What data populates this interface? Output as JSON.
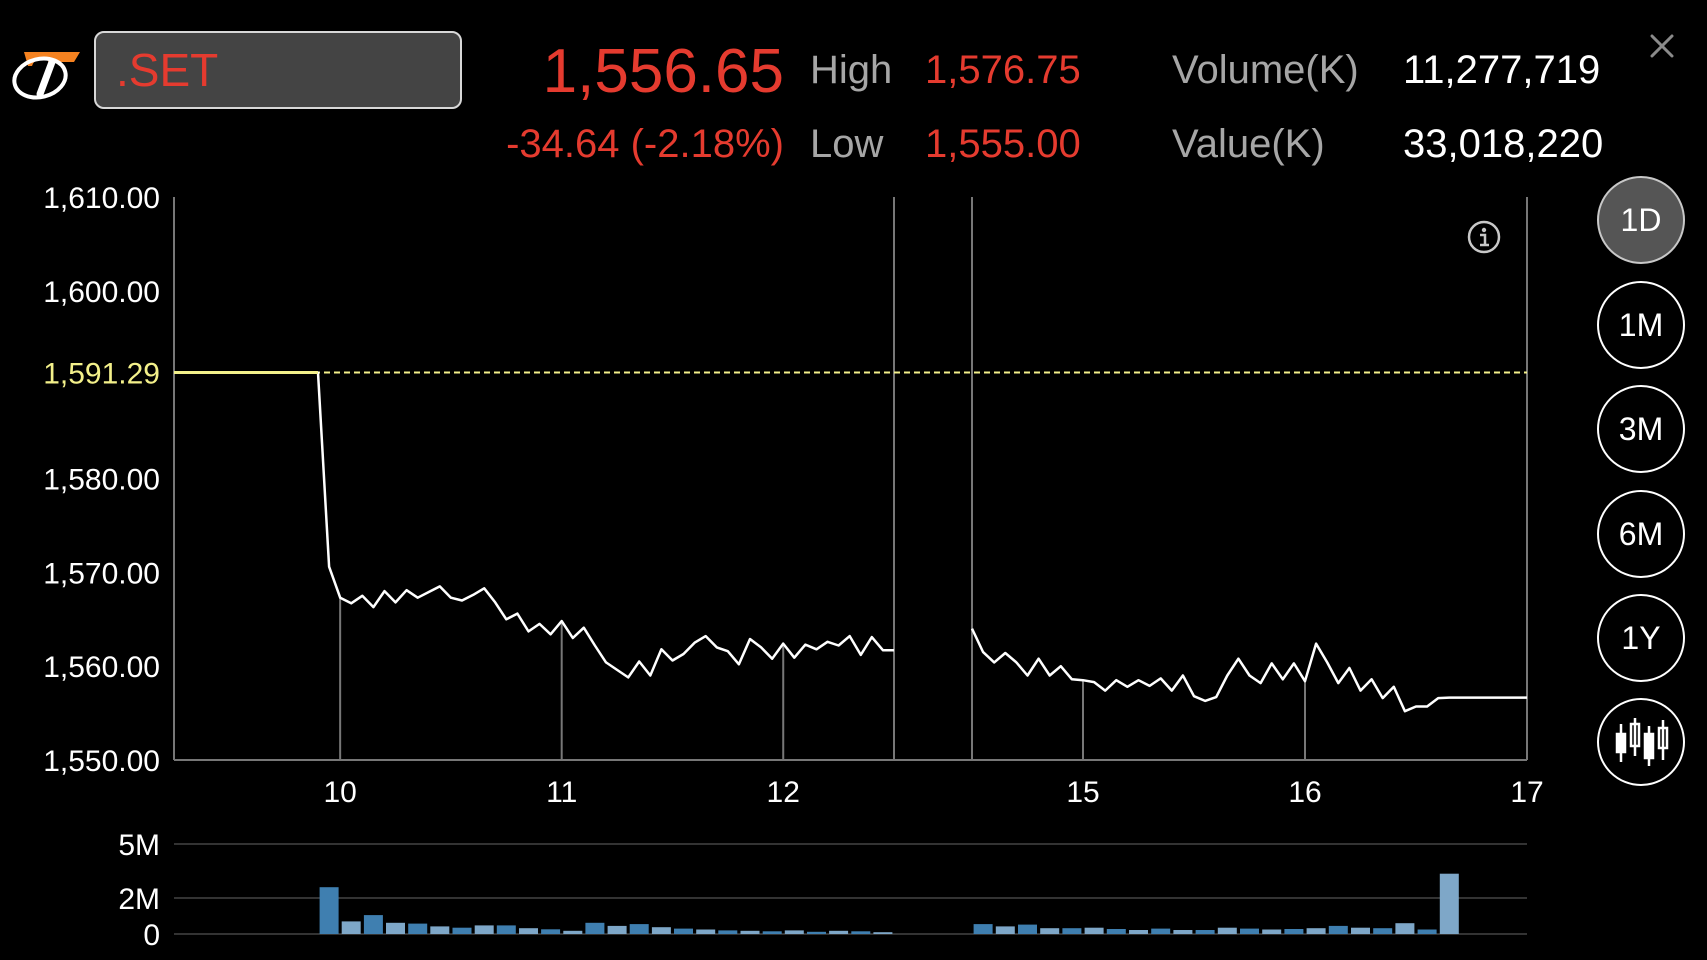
{
  "header": {
    "symbol": ".SET",
    "last_price": "1,556.65",
    "change": "-34.64 (-2.18%)",
    "high_label": "High",
    "high_value": "1,576.75",
    "low_label": "Low",
    "low_value": "1,555.00",
    "volume_label": "Volume(K)",
    "volume_value": "11,277,719",
    "value_label": "Value(K)",
    "value_value": "33,018,220"
  },
  "icons": {
    "logo": "brand-logo-icon",
    "close": "close-icon",
    "info": "info-icon",
    "candlestick": "candlestick-icon"
  },
  "periods": [
    {
      "label": "1D",
      "active": true
    },
    {
      "label": "1M",
      "active": false
    },
    {
      "label": "3M",
      "active": false
    },
    {
      "label": "6M",
      "active": false
    },
    {
      "label": "1Y",
      "active": false
    }
  ],
  "colors": {
    "up_down_red": "#e53b2f",
    "prev_close_yellow": "#f3f08a",
    "line": "#ffffff",
    "volume_blue": "#3f7fb0",
    "volume_light": "#7ea7c8"
  },
  "chart_data": [
    {
      "type": "line",
      "title": "",
      "ylim": [
        1550,
        1610
      ],
      "y_ticks": [
        "1,610.00",
        "1,600.00",
        "1,580.00",
        "1,570.00",
        "1,560.00",
        "1,550.00"
      ],
      "y_tick_values": [
        1610,
        1600,
        1580,
        1570,
        1560,
        1550
      ],
      "prev_close": {
        "label": "1,591.29",
        "value": 1591.29
      },
      "x_ticks": [
        "10",
        "11",
        "12",
        "15",
        "16",
        "17"
      ],
      "x_tick_values": [
        10,
        11,
        12,
        15,
        16,
        17
      ],
      "x_range": [
        9.25,
        17
      ],
      "session_break": [
        12.5,
        14.5
      ],
      "series": [
        {
          "x": [
            9.25,
            9.9,
            9.95,
            10.0,
            10.05,
            10.1,
            10.15,
            10.2,
            10.25,
            10.3,
            10.35,
            10.4,
            10.45,
            10.5,
            10.55,
            10.6,
            10.65,
            10.7,
            10.75,
            10.8,
            10.85,
            10.9,
            10.95,
            11.0,
            11.05,
            11.1,
            11.15,
            11.2,
            11.25,
            11.3,
            11.35,
            11.4,
            11.45,
            11.5,
            11.55,
            11.6,
            11.65,
            11.7,
            11.75,
            11.8,
            11.85,
            11.9,
            11.95,
            12.0,
            12.05,
            12.1,
            12.15,
            12.2,
            12.25,
            12.3,
            12.35,
            12.4,
            12.45,
            12.5
          ],
          "y": [
            1591.29,
            1591.29,
            1570.6,
            1567.3,
            1566.7,
            1567.5,
            1566.3,
            1568.0,
            1566.8,
            1568.1,
            1567.3,
            1567.9,
            1568.5,
            1567.3,
            1567.0,
            1567.6,
            1568.3,
            1566.8,
            1565.0,
            1565.6,
            1563.7,
            1564.5,
            1563.4,
            1564.8,
            1563.0,
            1564.1,
            1562.2,
            1560.4,
            1559.6,
            1558.8,
            1560.5,
            1559.0,
            1561.8,
            1560.6,
            1561.3,
            1562.5,
            1563.2,
            1562.0,
            1561.6,
            1560.2,
            1562.9,
            1562.0,
            1560.8,
            1562.4,
            1560.9,
            1562.3,
            1561.8,
            1562.6,
            1562.2,
            1563.2,
            1561.2,
            1563.1,
            1561.7,
            1561.7
          ]
        },
        {
          "x": [
            14.5,
            14.55,
            14.6,
            14.65,
            14.7,
            14.75,
            14.8,
            14.85,
            14.9,
            14.95,
            15.0,
            15.05,
            15.1,
            15.15,
            15.2,
            15.25,
            15.3,
            15.35,
            15.4,
            15.45,
            15.5,
            15.55,
            15.6,
            15.65,
            15.7,
            15.75,
            15.8,
            15.85,
            15.9,
            15.95,
            16.0,
            16.05,
            16.1,
            16.15,
            16.2,
            16.25,
            16.3,
            16.35,
            16.4,
            16.45,
            16.5,
            16.55,
            16.6,
            16.65,
            16.7,
            16.8,
            17.0
          ],
          "y": [
            1564.0,
            1561.5,
            1560.4,
            1561.4,
            1560.4,
            1559.0,
            1560.8,
            1559.0,
            1560.0,
            1558.6,
            1558.5,
            1558.3,
            1557.4,
            1558.5,
            1557.8,
            1558.5,
            1557.9,
            1558.7,
            1557.4,
            1559.0,
            1556.8,
            1556.3,
            1556.7,
            1559.0,
            1560.8,
            1559.0,
            1558.2,
            1560.3,
            1558.6,
            1560.3,
            1558.4,
            1562.4,
            1560.4,
            1558.2,
            1559.8,
            1557.4,
            1558.6,
            1556.6,
            1557.8,
            1555.2,
            1555.7,
            1555.7,
            1556.6,
            1556.65,
            1556.65,
            1556.65,
            1556.65
          ]
        }
      ]
    },
    {
      "type": "bar",
      "title": "",
      "ylim": [
        0,
        5
      ],
      "y_ticks": [
        "5M",
        "2M",
        "0"
      ],
      "y_tick_values": [
        5,
        2,
        0
      ],
      "x_range": [
        9.25,
        17
      ],
      "x": [
        9.95,
        10.05,
        10.15,
        10.25,
        10.35,
        10.45,
        10.55,
        10.65,
        10.75,
        10.85,
        10.95,
        11.05,
        11.15,
        11.25,
        11.35,
        11.45,
        11.55,
        11.65,
        11.75,
        11.85,
        11.95,
        12.05,
        12.15,
        12.25,
        12.35,
        12.45,
        14.55,
        14.65,
        14.75,
        14.85,
        14.95,
        15.05,
        15.15,
        15.25,
        15.35,
        15.45,
        15.55,
        15.65,
        15.75,
        15.85,
        15.95,
        16.05,
        16.15,
        16.25,
        16.35,
        16.45,
        16.55,
        16.65
      ],
      "values": [
        2.6,
        0.7,
        1.05,
        0.62,
        0.58,
        0.42,
        0.35,
        0.48,
        0.48,
        0.32,
        0.26,
        0.18,
        0.62,
        0.45,
        0.55,
        0.38,
        0.3,
        0.25,
        0.2,
        0.18,
        0.15,
        0.2,
        0.12,
        0.18,
        0.15,
        0.1,
        0.55,
        0.42,
        0.52,
        0.32,
        0.32,
        0.35,
        0.28,
        0.22,
        0.3,
        0.22,
        0.22,
        0.35,
        0.3,
        0.25,
        0.28,
        0.32,
        0.45,
        0.35,
        0.32,
        0.6,
        0.25,
        3.35
      ]
    }
  ]
}
